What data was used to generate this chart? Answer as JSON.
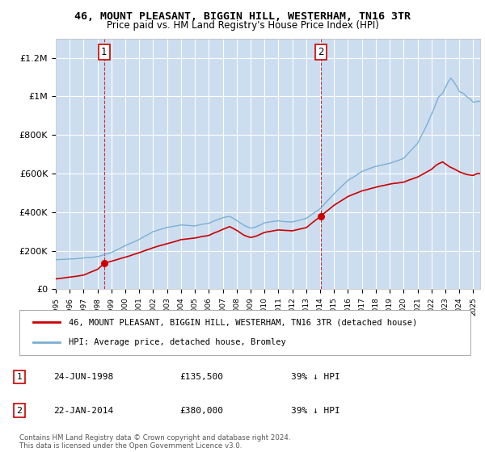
{
  "title": "46, MOUNT PLEASANT, BIGGIN HILL, WESTERHAM, TN16 3TR",
  "subtitle": "Price paid vs. HM Land Registry's House Price Index (HPI)",
  "bg_color": "#ccddf0",
  "plot_bg_color": "#ccddf0",
  "property_color": "#cc0000",
  "hpi_color": "#7ab0d4",
  "property_label": "46, MOUNT PLEASANT, BIGGIN HILL, WESTERHAM, TN16 3TR (detached house)",
  "hpi_label": "HPI: Average price, detached house, Bromley",
  "t1_year": 1998.48,
  "t1_price": 135500,
  "t1_label": "24-JUN-1998",
  "t1_note": "39% ↓ HPI",
  "t2_year": 2014.06,
  "t2_price": 380000,
  "t2_label": "22-JAN-2014",
  "t2_note": "39% ↓ HPI",
  "footer": "Contains HM Land Registry data © Crown copyright and database right 2024.\nThis data is licensed under the Open Government Licence v3.0.",
  "ylim": [
    0,
    1300000
  ],
  "yticks": [
    0,
    200000,
    400000,
    600000,
    800000,
    1000000,
    1200000
  ],
  "ytick_labels": [
    "£0",
    "£200K",
    "£400K",
    "£600K",
    "£800K",
    "£1M",
    "£1.2M"
  ],
  "xstart": 1995.0,
  "xend": 2025.5,
  "hpi_keypoints": [
    [
      1995.0,
      148000
    ],
    [
      1996.0,
      152000
    ],
    [
      1997.0,
      158000
    ],
    [
      1998.0,
      165000
    ],
    [
      1999.0,
      185000
    ],
    [
      2000.0,
      220000
    ],
    [
      2001.0,
      255000
    ],
    [
      2002.0,
      295000
    ],
    [
      2003.0,
      318000
    ],
    [
      2004.0,
      330000
    ],
    [
      2005.0,
      325000
    ],
    [
      2006.0,
      340000
    ],
    [
      2007.0,
      368000
    ],
    [
      2007.5,
      375000
    ],
    [
      2008.0,
      355000
    ],
    [
      2008.5,
      330000
    ],
    [
      2009.0,
      315000
    ],
    [
      2009.5,
      325000
    ],
    [
      2010.0,
      345000
    ],
    [
      2011.0,
      355000
    ],
    [
      2012.0,
      350000
    ],
    [
      2013.0,
      370000
    ],
    [
      2014.0,
      420000
    ],
    [
      2015.0,
      500000
    ],
    [
      2016.0,
      570000
    ],
    [
      2017.0,
      615000
    ],
    [
      2018.0,
      640000
    ],
    [
      2019.0,
      655000
    ],
    [
      2020.0,
      680000
    ],
    [
      2021.0,
      760000
    ],
    [
      2021.5,
      830000
    ],
    [
      2022.0,
      910000
    ],
    [
      2022.3,
      960000
    ],
    [
      2022.5,
      1000000
    ],
    [
      2022.8,
      1020000
    ],
    [
      2023.0,
      1050000
    ],
    [
      2023.2,
      1080000
    ],
    [
      2023.4,
      1100000
    ],
    [
      2023.6,
      1080000
    ],
    [
      2023.8,
      1060000
    ],
    [
      2024.0,
      1030000
    ],
    [
      2024.3,
      1020000
    ],
    [
      2024.6,
      1000000
    ],
    [
      2024.8,
      990000
    ],
    [
      2025.0,
      975000
    ],
    [
      2025.3,
      980000
    ]
  ],
  "prop_keypoints_1": [
    [
      1995.0,
      55000
    ],
    [
      1996.0,
      65000
    ],
    [
      1997.0,
      75000
    ],
    [
      1998.0,
      105000
    ],
    [
      1998.48,
      135500
    ],
    [
      1999.0,
      148000
    ],
    [
      2000.0,
      168000
    ],
    [
      2001.0,
      190000
    ],
    [
      2002.0,
      215000
    ],
    [
      2003.0,
      235000
    ],
    [
      2004.0,
      255000
    ],
    [
      2005.0,
      265000
    ],
    [
      2006.0,
      280000
    ],
    [
      2007.0,
      310000
    ],
    [
      2007.5,
      325000
    ],
    [
      2008.0,
      305000
    ],
    [
      2008.5,
      280000
    ],
    [
      2009.0,
      268000
    ],
    [
      2009.5,
      278000
    ],
    [
      2010.0,
      295000
    ],
    [
      2011.0,
      308000
    ],
    [
      2012.0,
      302000
    ],
    [
      2013.0,
      318000
    ],
    [
      2014.06,
      380000
    ]
  ],
  "prop_keypoints_2": [
    [
      2014.06,
      380000
    ],
    [
      2015.0,
      435000
    ],
    [
      2016.0,
      480000
    ],
    [
      2017.0,
      510000
    ],
    [
      2018.0,
      530000
    ],
    [
      2019.0,
      545000
    ],
    [
      2020.0,
      555000
    ],
    [
      2021.0,
      580000
    ],
    [
      2021.5,
      600000
    ],
    [
      2022.0,
      620000
    ],
    [
      2022.3,
      640000
    ],
    [
      2022.5,
      650000
    ],
    [
      2022.8,
      660000
    ],
    [
      2023.0,
      650000
    ],
    [
      2023.3,
      635000
    ],
    [
      2023.6,
      625000
    ],
    [
      2024.0,
      610000
    ],
    [
      2024.5,
      595000
    ],
    [
      2025.0,
      590000
    ],
    [
      2025.3,
      600000
    ]
  ]
}
